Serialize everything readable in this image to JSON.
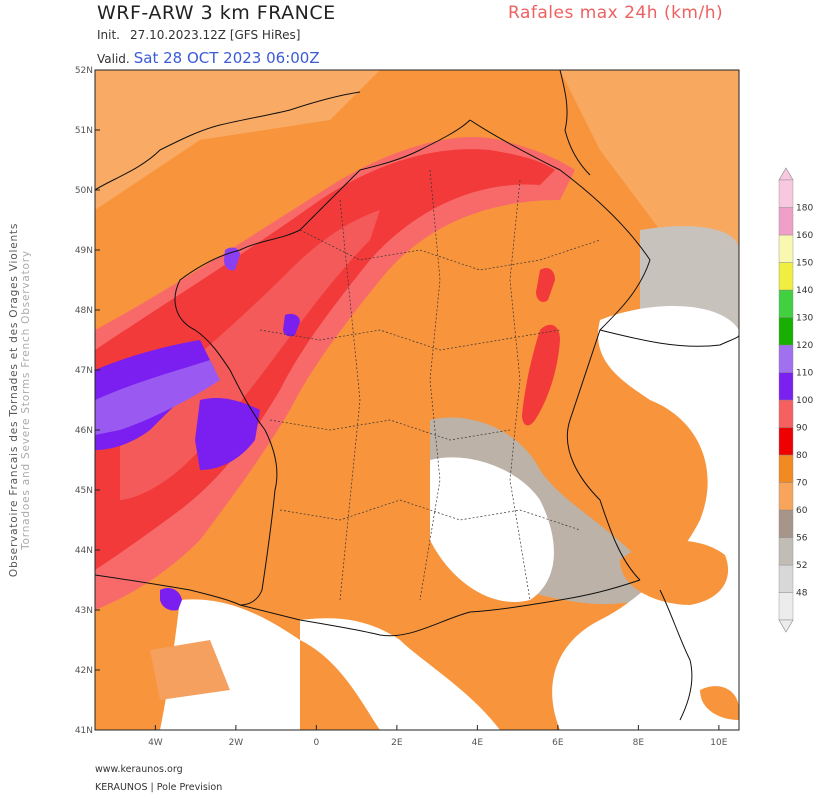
{
  "header": {
    "title": "WRF-ARW 3 km FRANCE",
    "subtitle": "Rafales max 24h (km/h)",
    "init_label": "Init.",
    "init_value": "27.10.2023.12Z [GFS HiRes]",
    "valid_label": "Valid.",
    "valid_value": "Sat 28 OCT 2023 06:00Z"
  },
  "side_label": {
    "line1": "Observatoire Francais des Tornades et des Orages Violents",
    "line2": "Tornadoes and Severe Storms French Observatory"
  },
  "map": {
    "lat_labels": [
      "52N",
      "51N",
      "50N",
      "49N",
      "48N",
      "47N",
      "46N",
      "45N",
      "44N",
      "43N",
      "42N",
      "41N"
    ],
    "lon_labels": [
      "4W",
      "2W",
      "0",
      "2E",
      "4E",
      "6E",
      "8E",
      "10E"
    ],
    "lat_range": [
      41,
      52
    ],
    "lon_range": [
      -5.5,
      10.5
    ]
  },
  "legend": {
    "values": [
      "48",
      "52",
      "56",
      "60",
      "70",
      "80",
      "90",
      "100",
      "110",
      "120",
      "130",
      "140",
      "150",
      "160",
      "180"
    ],
    "colors": [
      "#ececec",
      "#d8d8d8",
      "#c2bcb6",
      "#a8958a",
      "#f8a45a",
      "#f28a22",
      "#ee0000",
      "#f66060",
      "#7a20f0",
      "#a070f0",
      "#18b000",
      "#40d040",
      "#f0ee40",
      "#f8f8b0",
      "#f0a0c8",
      "#f8c8e0"
    ]
  },
  "footer": {
    "url": "www.keraunos.org",
    "brand": "KERAUNOS | Pole Prevision"
  }
}
